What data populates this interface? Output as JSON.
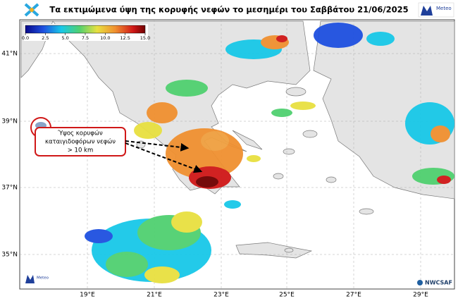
{
  "header": {
    "title": "Τα εκτιμώμενα ύψη της κορυφής νεφών το μεσημέρι του Σαββάτου 21/06/2025",
    "logo_right": "Meteo"
  },
  "colorbar": {
    "ticks": [
      {
        "value": 0,
        "label": "0.0"
      },
      2.5,
      {
        "value": 5,
        "label": "5.0"
      },
      7.5,
      {
        "value": 10,
        "label": "10.0"
      },
      12.5,
      {
        "value": 15,
        "label": "15.0"
      }
    ]
  },
  "map": {
    "lat_labels": [
      "41°N",
      "39°N",
      "37°N",
      "35°N"
    ],
    "lon_labels": [
      "19°E",
      "21°E",
      "23°E",
      "25°E",
      "27°E",
      "29°E"
    ]
  },
  "annotation": {
    "lines": [
      "Ύψος κορυφών",
      "καταιγιδοφόρων νεφών",
      "> 10 km"
    ]
  },
  "footer": {
    "logo_left": "Meteo",
    "logo_right": "NWCSAF"
  }
}
